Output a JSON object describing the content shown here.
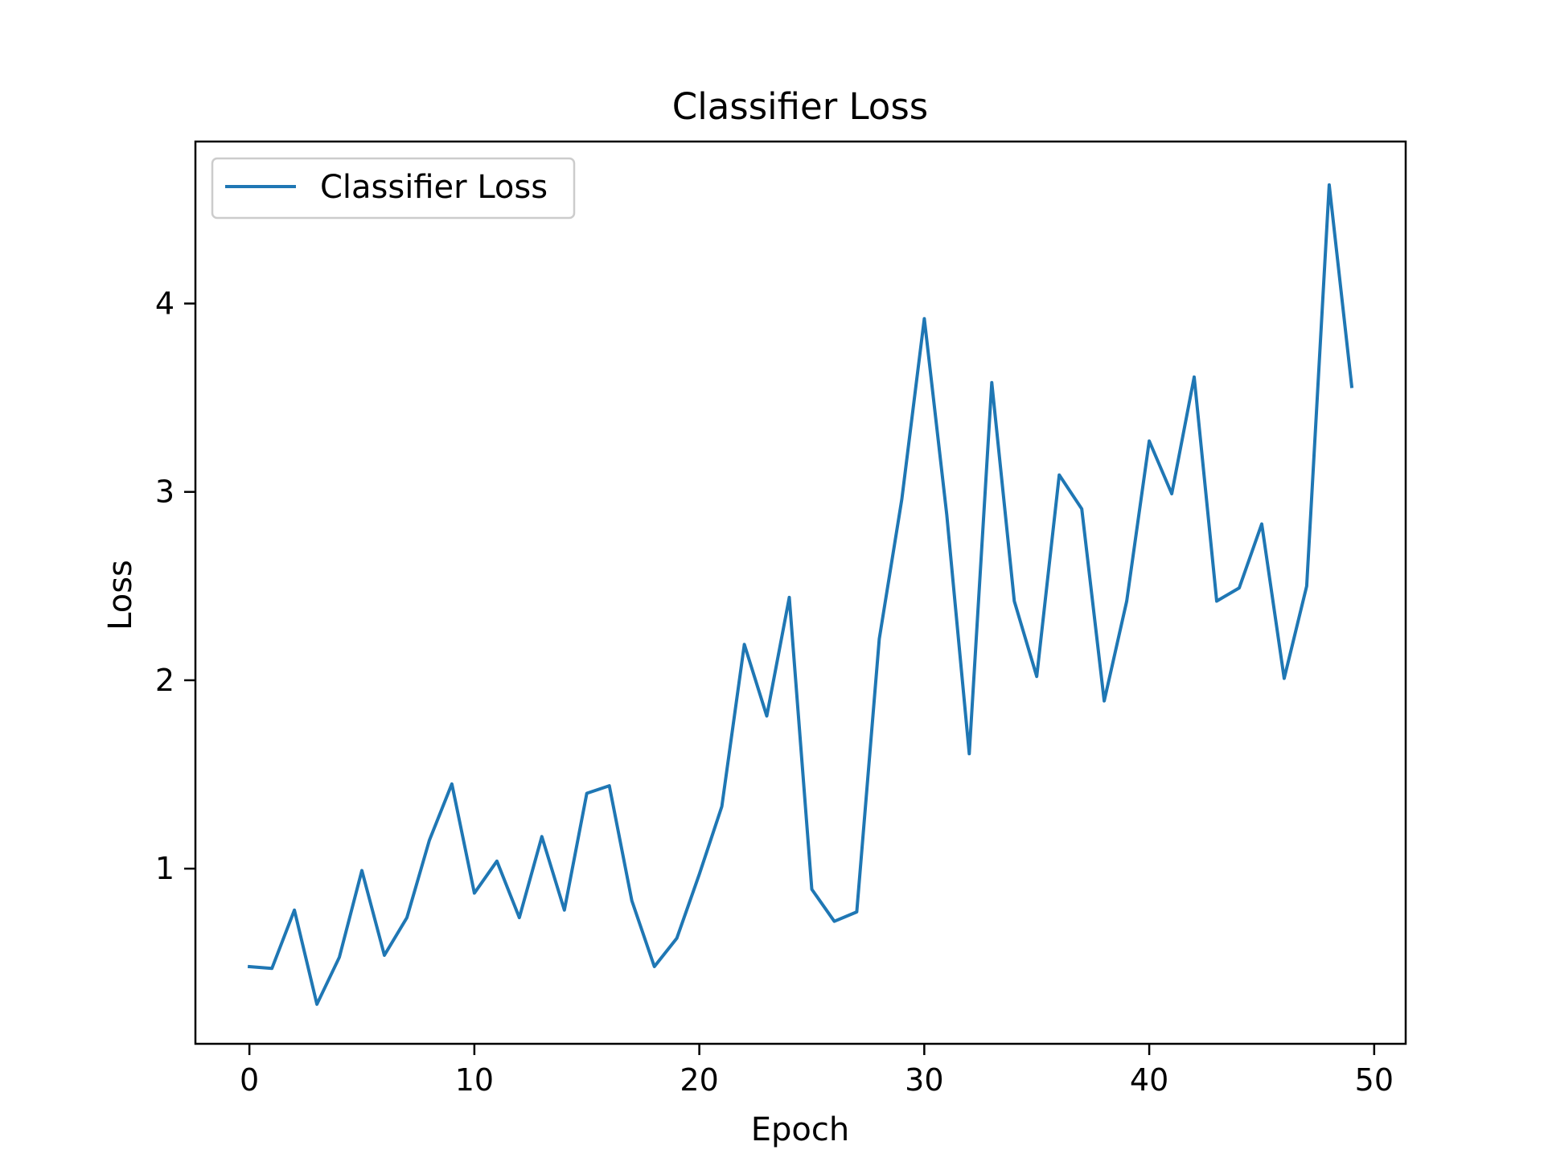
{
  "chart_data": {
    "type": "line",
    "title": "Classifier Loss",
    "xlabel": "Epoch",
    "ylabel": "Loss",
    "xlim": [
      -2.4,
      51.4
    ],
    "ylim": [
      0.07,
      4.86
    ],
    "xticks": [
      0,
      10,
      20,
      30,
      40,
      50
    ],
    "yticks": [
      1,
      2,
      3,
      4
    ],
    "grid": false,
    "legend": {
      "placement": "upper-left"
    },
    "series": [
      {
        "name": "Classifier Loss",
        "color": "#1f77b4",
        "x": [
          0,
          1,
          2,
          3,
          4,
          5,
          6,
          7,
          8,
          9,
          10,
          11,
          12,
          13,
          14,
          15,
          16,
          17,
          18,
          19,
          20,
          21,
          22,
          23,
          24,
          25,
          26,
          27,
          28,
          29,
          30,
          31,
          32,
          33,
          34,
          35,
          36,
          37,
          38,
          39,
          40,
          41,
          42,
          43,
          44,
          45,
          46,
          47,
          48,
          49
        ],
        "y": [
          0.48,
          0.47,
          0.78,
          0.28,
          0.53,
          0.99,
          0.54,
          0.74,
          1.15,
          1.45,
          0.87,
          1.04,
          0.74,
          1.17,
          0.78,
          1.4,
          1.44,
          0.83,
          0.48,
          0.63,
          0.97,
          1.33,
          2.19,
          1.81,
          2.44,
          0.89,
          0.72,
          0.77,
          2.22,
          2.96,
          3.92,
          2.88,
          1.61,
          3.58,
          2.42,
          2.02,
          3.09,
          2.91,
          1.89,
          2.42,
          3.27,
          2.99,
          3.61,
          2.42,
          2.49,
          2.83,
          2.01,
          2.5,
          4.63,
          3.56
        ]
      }
    ]
  }
}
